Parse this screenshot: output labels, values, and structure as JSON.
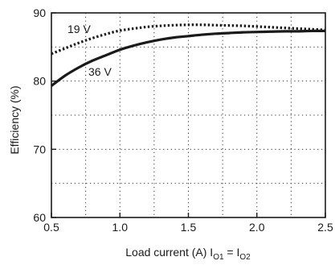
{
  "chart_data": {
    "type": "line",
    "xlabel": "Load current (A) I",
    "xlabel_sub1": "O1",
    "xlabel_eq": " = I",
    "xlabel_sub2": "O2",
    "ylabel": "Efficiency (%)",
    "xlim": [
      0.5,
      2.5
    ],
    "ylim": [
      60,
      90
    ],
    "xticks": [
      0.5,
      1.0,
      1.5,
      2.0,
      2.5
    ],
    "xtick_labels": [
      "0.5",
      "1.0",
      "1.5",
      "2.0",
      "2.5"
    ],
    "yticks": [
      60,
      70,
      80,
      90
    ],
    "ytick_labels": [
      "60",
      "70",
      "80",
      "90"
    ],
    "grid_x": [
      0.75,
      1.0,
      1.25,
      1.5,
      1.75,
      2.0,
      2.25
    ],
    "grid_y": [
      65,
      70,
      75,
      80,
      85
    ],
    "grid": true,
    "series": [
      {
        "name": "19 V",
        "style": "dotted",
        "color": "#1a1a1a",
        "x": [
          0.5,
          0.6,
          0.7,
          0.8,
          0.9,
          1.0,
          1.1,
          1.2,
          1.3,
          1.4,
          1.5,
          1.6,
          1.7,
          1.8,
          1.9,
          2.0,
          2.1,
          2.2,
          2.3,
          2.4,
          2.5
        ],
        "y": [
          84.0,
          84.8,
          85.6,
          86.3,
          86.9,
          87.4,
          87.7,
          87.95,
          88.1,
          88.2,
          88.25,
          88.25,
          88.2,
          88.15,
          88.1,
          88.0,
          87.9,
          87.8,
          87.7,
          87.6,
          87.5
        ]
      },
      {
        "name": "36 V",
        "style": "solid",
        "color": "#1a1a1a",
        "x": [
          0.5,
          0.6,
          0.7,
          0.8,
          0.9,
          1.0,
          1.1,
          1.2,
          1.3,
          1.4,
          1.5,
          1.6,
          1.7,
          1.8,
          1.9,
          2.0,
          2.1,
          2.2,
          2.3,
          2.4,
          2.5
        ],
        "y": [
          79.3,
          80.8,
          82.0,
          83.0,
          83.8,
          84.6,
          85.2,
          85.7,
          86.1,
          86.4,
          86.6,
          86.8,
          86.95,
          87.05,
          87.15,
          87.2,
          87.25,
          87.3,
          87.3,
          87.35,
          87.35
        ]
      }
    ]
  }
}
